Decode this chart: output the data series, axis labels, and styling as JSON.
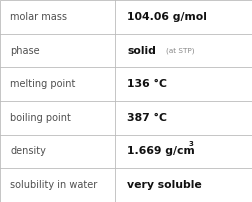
{
  "rows": [
    {
      "label": "molar mass",
      "value": "104.06 g/mol",
      "superscript": null,
      "sub_text": null
    },
    {
      "label": "phase",
      "value": "solid",
      "superscript": null,
      "sub_text": "(at STP)"
    },
    {
      "label": "melting point",
      "value": "136 °C",
      "superscript": null,
      "sub_text": null
    },
    {
      "label": "boiling point",
      "value": "387 °C",
      "superscript": null,
      "sub_text": null
    },
    {
      "label": "density",
      "value": "1.669 g/cm",
      "superscript": "3",
      "sub_text": null
    },
    {
      "label": "solubility in water",
      "value": "very soluble",
      "superscript": null,
      "sub_text": null
    }
  ],
  "col_split": 0.455,
  "background_color": "#ffffff",
  "border_color": "#bbbbbb",
  "label_color": "#505050",
  "value_color": "#111111",
  "subtext_color": "#888888",
  "label_fontsize": 7.0,
  "value_fontsize": 7.8,
  "subtext_fontsize": 5.2,
  "superscript_fontsize": 5.0,
  "figwidth": 2.52,
  "figheight": 2.02,
  "dpi": 100
}
